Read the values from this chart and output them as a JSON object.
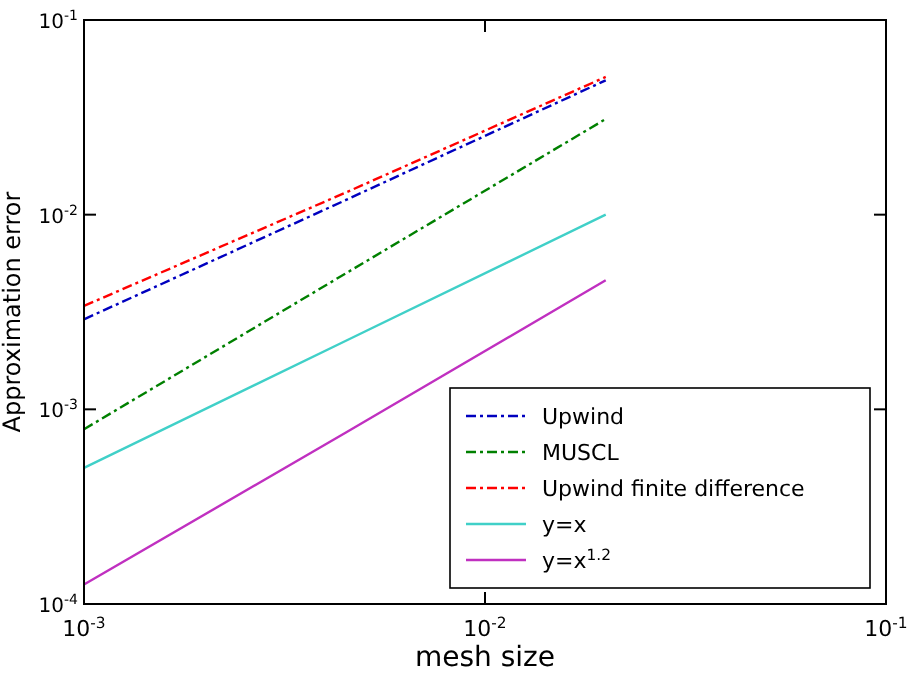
{
  "chart_data": {
    "type": "line",
    "xlabel": "mesh size",
    "ylabel": "Approximation error",
    "log": "xy",
    "grid": false,
    "legend": "bottom right",
    "line_style": "solid",
    "marker": "none",
    "x": [
      0.001,
      0.0045,
      0.02
    ],
    "xlim": [
      0.001,
      0.1
    ],
    "ylim": [
      0.0001,
      0.1
    ],
    "xticks": [
      {
        "value": 0.001,
        "label": "10$^{-3}$"
      },
      {
        "value": 0.01,
        "label": "10$^{-2}$"
      },
      {
        "value": 0.1,
        "label": "10$^{-1}$"
      }
    ],
    "yticks": [
      {
        "value": 0.0001,
        "label": "10$^{-4}$"
      },
      {
        "value": 0.001,
        "label": "10$^{-3}$"
      },
      {
        "value": 0.01,
        "label": "10$^{-2}$"
      },
      {
        "value": 0.1,
        "label": "10$^{-1}$"
      }
    ],
    "series": [
      {
        "name": "Upwind",
        "color": "#0000bf",
        "line_style": "dashed",
        "values": [
          0.0029,
          0.0119,
          0.049
        ]
      },
      {
        "name": "MUSCL",
        "color": "#008000",
        "line_style": "dashed",
        "values": [
          0.00079,
          0.005,
          0.031
        ]
      },
      {
        "name": "Upwind finite difference",
        "color": "#ff0000",
        "line_style": "dashed",
        "values": [
          0.0034,
          0.013,
          0.051
        ]
      },
      {
        "name": "y=x",
        "color": "#40d0c8",
        "values": [
          0.0005,
          0.00225,
          0.01
        ]
      },
      {
        "name": "y=x$^{1.2}$",
        "color": "#c030c0",
        "values": [
          0.000126,
          0.00076,
          0.0046
        ]
      }
    ]
  }
}
